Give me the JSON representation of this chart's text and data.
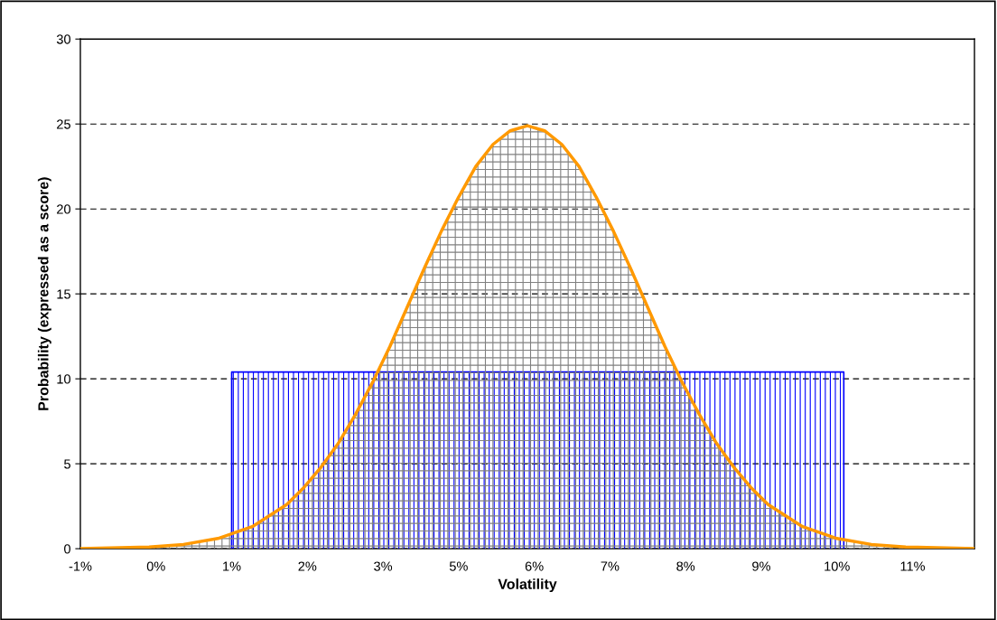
{
  "chart_data": {
    "type": "area",
    "xlabel": "Volatility",
    "ylabel": "Probability (expressed as a score)",
    "xlim": [
      -1,
      12
    ],
    "ylim": [
      0,
      30
    ],
    "xticks": [
      {
        "value": -1,
        "label": "-1%"
      },
      {
        "value": 0.1,
        "label": "0%"
      },
      {
        "value": 1.2,
        "label": "1%"
      },
      {
        "value": 2.3,
        "label": "2%"
      },
      {
        "value": 3.4,
        "label": "3%"
      },
      {
        "value": 4.5,
        "label": "5%"
      },
      {
        "value": 5.6,
        "label": "6%"
      },
      {
        "value": 6.7,
        "label": "7%"
      },
      {
        "value": 7.8,
        "label": "8%"
      },
      {
        "value": 8.9,
        "label": "9%"
      },
      {
        "value": 10.0,
        "label": "10%"
      },
      {
        "value": 11.1,
        "label": "11%"
      }
    ],
    "yticks": [
      0,
      5,
      10,
      15,
      20,
      25,
      30
    ],
    "grid": "y",
    "line_style": "solid",
    "series": [
      {
        "color": "#ff9900",
        "x": [
          -1,
          0,
          0.5,
          1,
          1.5,
          2,
          2.25,
          2.5,
          2.75,
          3,
          3.25,
          3.5,
          3.75,
          4,
          4.25,
          4.5,
          4.75,
          5,
          5.25,
          5.5,
          5.75,
          6,
          6.25,
          6.5,
          6.75,
          7,
          7.25,
          7.5,
          7.75,
          8,
          8.25,
          8.5,
          8.75,
          9,
          9.5,
          10,
          10.5,
          11,
          12
        ],
        "values": [
          0.01,
          0.1,
          0.25,
          0.6,
          1.3,
          2.6,
          3.6,
          4.8,
          6.2,
          7.9,
          9.8,
          11.9,
          14.2,
          16.5,
          18.7,
          20.7,
          22.5,
          23.8,
          24.6,
          24.9,
          24.6,
          23.8,
          22.5,
          20.7,
          18.7,
          16.5,
          14.2,
          11.9,
          9.8,
          7.9,
          6.2,
          4.8,
          3.6,
          2.6,
          1.3,
          0.6,
          0.25,
          0.1,
          0.01
        ]
      },
      {
        "color": "#0000ff",
        "x": [
          1.2,
          10.1
        ],
        "values": [
          10.4,
          10.4
        ]
      }
    ]
  }
}
